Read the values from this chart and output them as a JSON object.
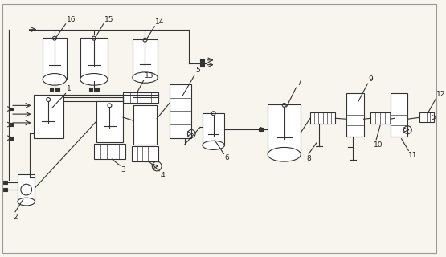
{
  "bg_color": "#f8f5ee",
  "line_color": "#333333",
  "lw": 0.8,
  "figsize": [
    5.55,
    3.2
  ],
  "dpi": 100
}
